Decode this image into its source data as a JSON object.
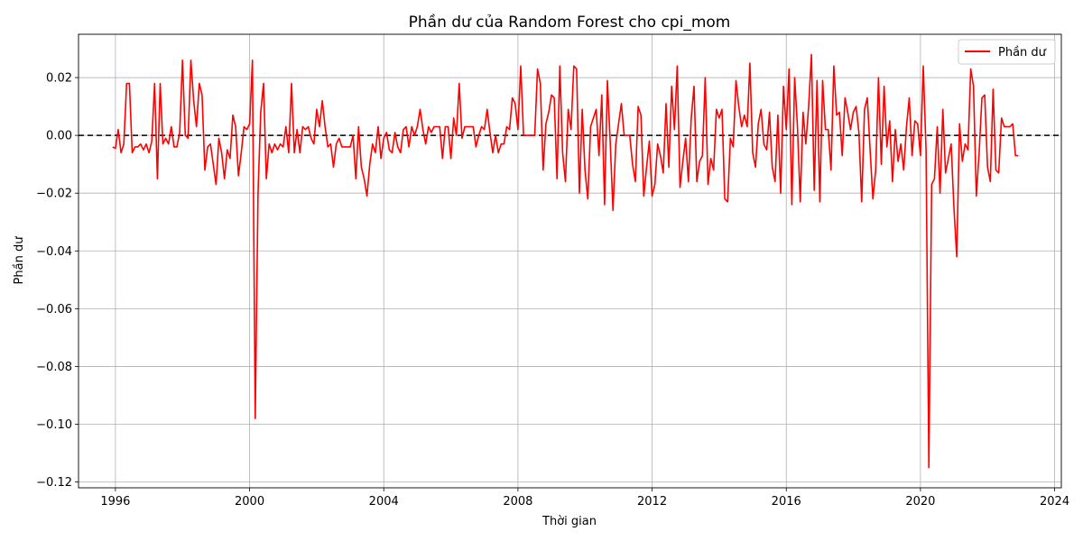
{
  "chart_data": {
    "type": "line",
    "title": "Phần dư của Random Forest cho cpi_mom",
    "xlabel": "Thời gian",
    "ylabel": "Phần dư",
    "xlim": [
      1994.9,
      2024.2
    ],
    "ylim": [
      -0.122,
      0.035
    ],
    "xticks": [
      1996,
      2000,
      2004,
      2008,
      2012,
      2016,
      2020,
      2024
    ],
    "yticks": [
      0.02,
      0.0,
      -0.02,
      -0.04,
      -0.06,
      -0.08,
      -0.1,
      -0.12
    ],
    "ytick_labels": [
      "0.02",
      "0.00",
      "−0.02",
      "−0.04",
      "−0.06",
      "−0.08",
      "−0.10",
      "−0.12"
    ],
    "grid": true,
    "legend_position": "top-right",
    "reference_line": {
      "y": 0.0,
      "style": "dashed",
      "color": "#000000"
    },
    "series": [
      {
        "name": "Phần dư",
        "color": "#ff0000",
        "x_start": 1995.917,
        "x_step": 0.08333,
        "values": [
          -0.004,
          -0.0045,
          0.002,
          -0.006,
          -0.003,
          0.018,
          0.018,
          -0.006,
          -0.004,
          -0.004,
          -0.003,
          -0.005,
          -0.003,
          -0.006,
          -0.002,
          0.018,
          -0.015,
          0.018,
          -0.003,
          -0.001,
          -0.003,
          0.003,
          -0.004,
          -0.004,
          0.001,
          0.026,
          0.0,
          -0.001,
          0.026,
          0.012,
          0.003,
          0.018,
          0.014,
          -0.012,
          -0.004,
          -0.003,
          -0.01,
          -0.017,
          -0.001,
          -0.006,
          -0.015,
          -0.005,
          -0.008,
          0.007,
          0.003,
          -0.014,
          -0.006,
          0.003,
          0.002,
          0.004,
          0.026,
          -0.098,
          -0.02,
          0.008,
          0.018,
          -0.015,
          -0.003,
          -0.006,
          -0.003,
          -0.005,
          -0.003,
          -0.004,
          0.003,
          -0.006,
          0.018,
          -0.006,
          0.002,
          -0.006,
          0.003,
          0.002,
          0.003,
          -0.001,
          -0.003,
          0.009,
          0.003,
          0.012,
          0.003,
          -0.004,
          -0.003,
          -0.011,
          -0.003,
          -0.001,
          -0.004,
          -0.004,
          -0.004,
          -0.004,
          0.0,
          -0.015,
          0.003,
          -0.011,
          -0.015,
          -0.021,
          -0.01,
          -0.003,
          -0.006,
          0.003,
          -0.008,
          -0.001,
          0.001,
          -0.005,
          -0.006,
          0.001,
          -0.004,
          -0.006,
          0.002,
          0.003,
          -0.004,
          0.003,
          0.0,
          0.003,
          0.009,
          0.002,
          -0.003,
          0.003,
          0.001,
          0.003,
          0.003,
          0.003,
          -0.008,
          0.003,
          0.003,
          -0.008,
          0.006,
          0.0,
          0.018,
          -0.001,
          0.003,
          0.003,
          0.003,
          0.003,
          -0.004,
          0.0,
          0.003,
          0.002,
          0.009,
          0.001,
          -0.006,
          0.0,
          -0.006,
          -0.003,
          -0.003,
          0.003,
          0.002,
          0.013,
          0.011,
          0.002,
          0.024,
          0.0,
          0.0,
          0.0,
          0.0,
          0.0,
          0.023,
          0.018,
          -0.012,
          0.004,
          0.008,
          0.014,
          0.013,
          -0.015,
          0.024,
          -0.006,
          -0.016,
          0.009,
          0.002,
          0.024,
          0.023,
          -0.02,
          0.009,
          -0.012,
          -0.022,
          0.003,
          0.006,
          0.009,
          -0.007,
          0.014,
          -0.024,
          0.019,
          -0.002,
          -0.026,
          -0.003,
          0.004,
          0.011,
          0.0,
          0.0,
          0.0,
          -0.01,
          -0.016,
          0.01,
          0.007,
          -0.021,
          -0.011,
          -0.002,
          -0.021,
          -0.017,
          -0.003,
          -0.007,
          -0.013,
          0.011,
          -0.011,
          0.017,
          0.002,
          0.024,
          -0.018,
          -0.009,
          -0.001,
          -0.016,
          0.006,
          0.017,
          -0.016,
          -0.009,
          -0.007,
          0.02,
          -0.017,
          -0.008,
          -0.012,
          0.009,
          0.006,
          0.009,
          -0.022,
          -0.023,
          -0.001,
          -0.004,
          0.019,
          0.01,
          0.003,
          0.007,
          0.003,
          0.025,
          -0.006,
          -0.011,
          0.004,
          0.009,
          -0.003,
          -0.005,
          0.008,
          -0.011,
          -0.016,
          0.007,
          -0.02,
          0.017,
          0.002,
          0.023,
          -0.024,
          0.02,
          0.003,
          -0.023,
          0.008,
          -0.003,
          0.01,
          0.028,
          -0.019,
          0.019,
          -0.023,
          0.019,
          0.002,
          0.002,
          -0.012,
          0.024,
          0.007,
          0.008,
          -0.007,
          0.013,
          0.008,
          0.002,
          0.008,
          0.01,
          0.001,
          -0.023,
          0.009,
          0.013,
          -0.005,
          -0.022,
          -0.012,
          0.02,
          -0.01,
          0.017,
          -0.004,
          0.005,
          -0.016,
          0.002,
          -0.009,
          -0.003,
          -0.012,
          0.003,
          0.013,
          -0.007,
          0.005,
          0.004,
          -0.007,
          0.024,
          -0.005,
          -0.115,
          -0.017,
          -0.015,
          0.003,
          -0.02,
          0.009,
          -0.013,
          -0.008,
          -0.003,
          -0.025,
          -0.042,
          0.004,
          -0.009,
          -0.003,
          -0.005,
          0.023,
          0.017,
          -0.021,
          -0.006,
          0.013,
          0.014,
          -0.011,
          -0.016,
          0.016,
          -0.012,
          -0.013,
          0.006,
          0.003,
          0.003,
          0.003,
          0.004,
          -0.007,
          -0.007
        ]
      }
    ]
  }
}
